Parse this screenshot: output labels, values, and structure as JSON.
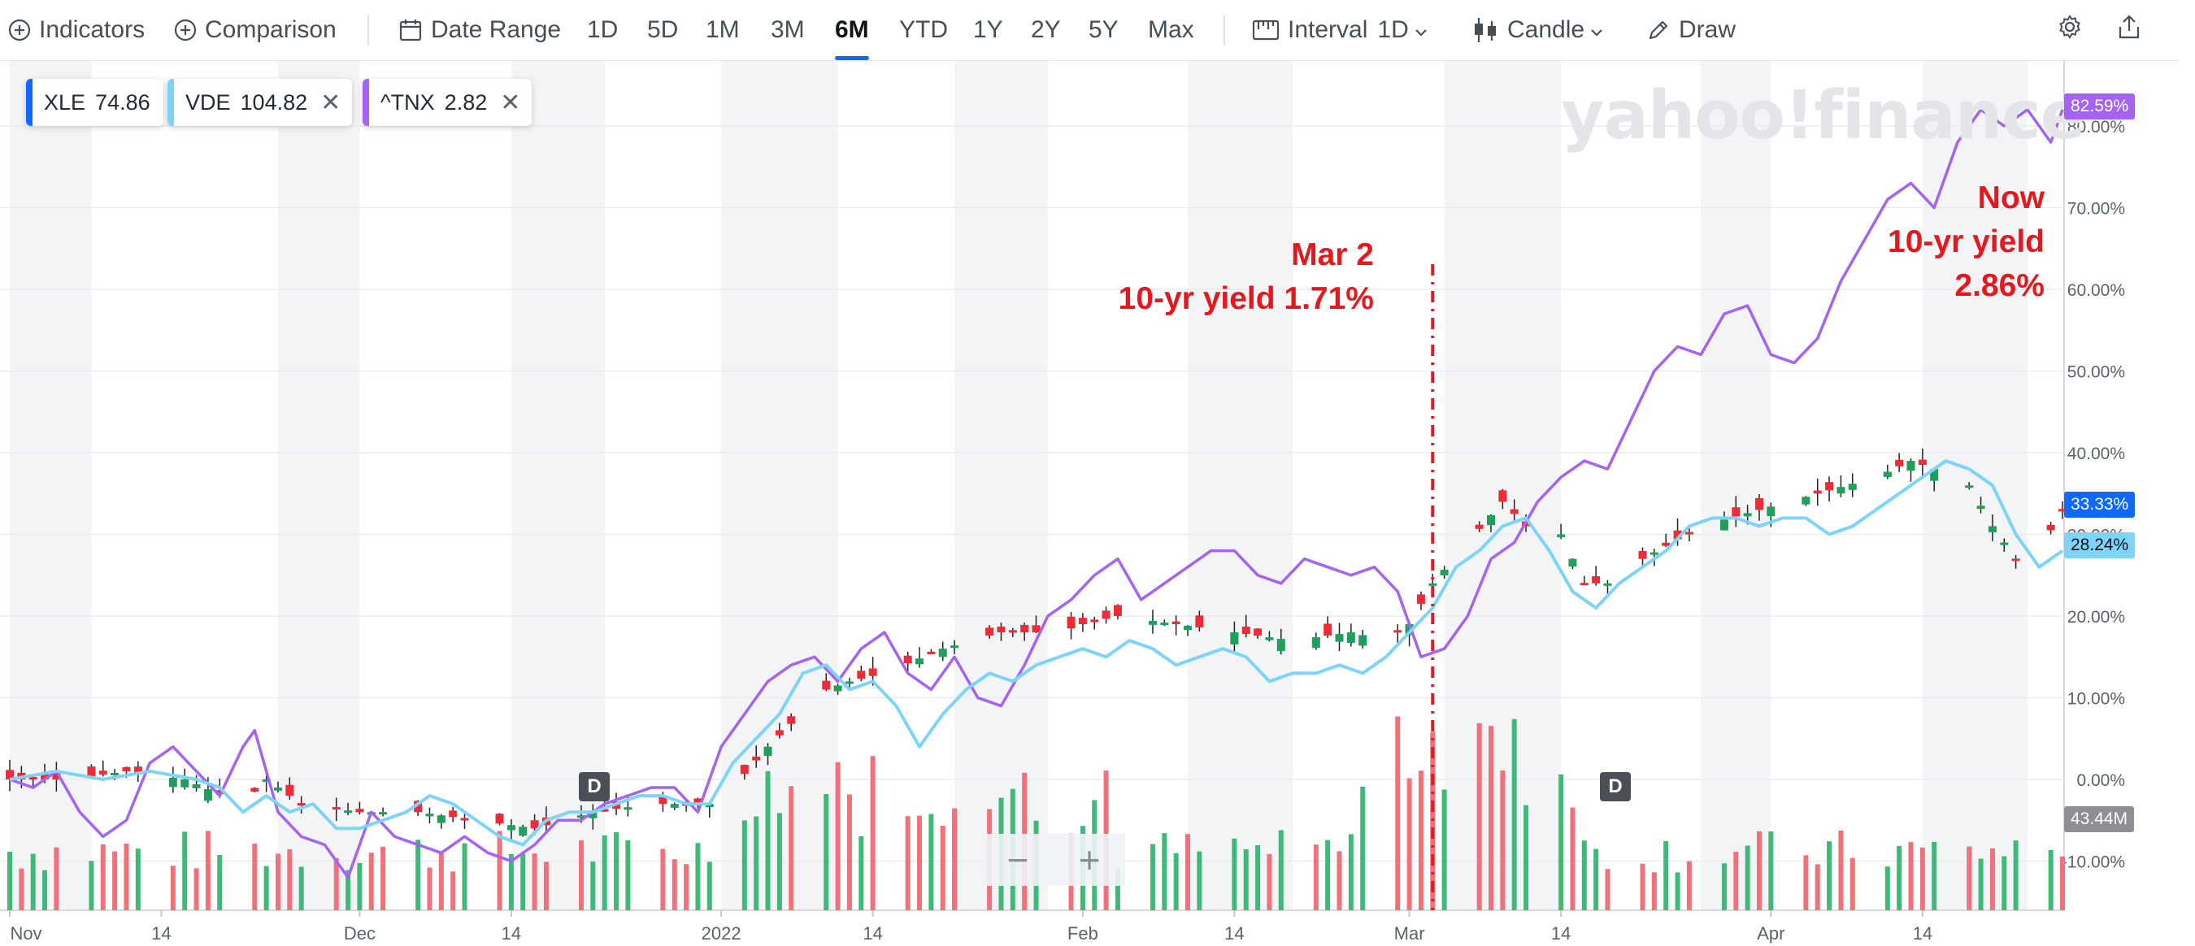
{
  "toolbar": {
    "indicators": "Indicators",
    "comparison": "Comparison",
    "date_range": "Date Range",
    "ranges": [
      "1D",
      "5D",
      "1M",
      "3M",
      "6M",
      "YTD",
      "1Y",
      "2Y",
      "5Y",
      "Max"
    ],
    "active_range": "6M",
    "interval_label": "Interval",
    "interval_value": "1D",
    "chart_type": "Candle",
    "draw": "Draw"
  },
  "legend": [
    {
      "symbol": "XLE",
      "value": "74.86",
      "color": "#0f69ff",
      "removable": false
    },
    {
      "symbol": "VDE",
      "value": "104.82",
      "color": "#7dd4f8",
      "removable": true
    },
    {
      "symbol": "^TNX",
      "value": "2.82",
      "color": "#a463f2",
      "removable": true
    }
  ],
  "watermark": "yahoo!finance",
  "price_tags": {
    "tnx": {
      "text": "82.59%",
      "color": "#a463f2"
    },
    "xle": {
      "text": "33.33%",
      "color": "#0f69ff"
    },
    "vde": {
      "text": "28.24%",
      "color": "#7dd4f8"
    },
    "volume": {
      "text": "43.44M",
      "color": "#8c9095"
    }
  },
  "annotations": {
    "mar2_line1": "Mar 2",
    "mar2_line2": "10-yr yield 1.71%",
    "now_line1": "Now",
    "now_line2": "10-yr yield",
    "now_line3": "2.86%"
  },
  "d_marker": "D",
  "zoom": {
    "minus": "−",
    "plus": "+"
  },
  "chart_data": {
    "type": "line",
    "ylabel": "",
    "yticks": [
      "80.00%",
      "70.00%",
      "60.00%",
      "50.00%",
      "40.00%",
      "30.00%",
      "20.00%",
      "10.00%",
      "0.00%",
      "-10.00%"
    ],
    "ylim": [
      -15,
      87
    ],
    "xticks": [
      "Nov",
      "14",
      "Dec",
      "14",
      "2022",
      "14",
      "Feb",
      "14",
      "Mar",
      "14",
      "Apr",
      "14"
    ],
    "x_tick_days": [
      0,
      13,
      30,
      43,
      61,
      74,
      92,
      105,
      120,
      133,
      151,
      164
    ],
    "x_range_days": [
      0,
      176
    ],
    "annotation_day": 122,
    "series": [
      {
        "name": "^TNX",
        "color": "#a463f2",
        "x": [
          0,
          2,
          4,
          6,
          8,
          10,
          12,
          14,
          16,
          18,
          20,
          21,
          23,
          25,
          27,
          29,
          31,
          33,
          35,
          37,
          39,
          41,
          43,
          45,
          47,
          49,
          51,
          53,
          55,
          57,
          59,
          61,
          63,
          65,
          67,
          69,
          71,
          73,
          75,
          77,
          79,
          81,
          83,
          85,
          87,
          89,
          91,
          93,
          95,
          97,
          99,
          101,
          103,
          105,
          107,
          109,
          111,
          113,
          115,
          117,
          119,
          121,
          123,
          125,
          127,
          129,
          131,
          133,
          135,
          137,
          139,
          141,
          143,
          145,
          147,
          149,
          151,
          153,
          155,
          157,
          159,
          161,
          163,
          165,
          167,
          169,
          171,
          173,
          175,
          176
        ],
        "y": [
          0,
          -1,
          1,
          -4,
          -7,
          -5,
          2,
          4,
          1,
          -2,
          4,
          6,
          -4,
          -7,
          -8,
          -12,
          -4,
          -7,
          -8,
          -9,
          -7,
          -9,
          -10,
          -8,
          -5,
          -5,
          -3,
          -2,
          -1,
          -1,
          -4,
          4,
          8,
          12,
          14,
          15,
          12,
          16,
          18,
          13,
          11,
          15,
          10,
          9,
          14,
          20,
          22,
          25,
          27,
          22,
          24,
          26,
          28,
          28,
          25,
          24,
          27,
          26,
          25,
          26,
          23,
          15,
          16,
          20,
          27,
          29,
          34,
          37,
          39,
          38,
          44,
          50,
          53,
          52,
          57,
          58,
          52,
          51,
          54,
          61,
          66,
          71,
          73,
          70,
          78,
          82,
          80,
          82,
          78,
          82
        ],
        "y_note": "percent change vs start, read from right axis"
      },
      {
        "name": "XLE",
        "color": "#0f69ff",
        "x": [
          0,
          5,
          10,
          15,
          20,
          22,
          25,
          30,
          35,
          40,
          45,
          50,
          55,
          60,
          62,
          65,
          70,
          72,
          75,
          80,
          85,
          90,
          92,
          95,
          100,
          105,
          110,
          115,
          118,
          120,
          122,
          125,
          128,
          130,
          133,
          135,
          138,
          140,
          145,
          150,
          155,
          160,
          163,
          165,
          168,
          170,
          172,
          174,
          176
        ],
        "y": [
          0,
          0,
          1,
          0,
          -3,
          0,
          -3,
          -4,
          -4,
          -5,
          -6,
          -4,
          -3,
          -3,
          -1,
          4,
          11,
          12,
          13,
          16,
          18,
          18,
          19,
          20,
          19,
          18,
          17,
          18,
          17,
          19,
          24,
          29,
          34,
          31,
          30,
          24,
          24,
          27,
          31,
          33,
          35,
          37,
          39,
          38,
          36,
          31,
          27,
          28,
          33
        ]
      },
      {
        "name": "VDE",
        "color": "#7dd4f8",
        "x": [
          0,
          4,
          8,
          12,
          16,
          18,
          20,
          22,
          24,
          26,
          28,
          30,
          32,
          34,
          36,
          38,
          40,
          42,
          44,
          46,
          48,
          50,
          52,
          54,
          56,
          58,
          60,
          62,
          64,
          66,
          68,
          70,
          72,
          74,
          76,
          78,
          80,
          82,
          84,
          86,
          88,
          90,
          92,
          94,
          96,
          98,
          100,
          102,
          104,
          106,
          108,
          110,
          112,
          114,
          116,
          118,
          120,
          122,
          124,
          126,
          128,
          130,
          132,
          134,
          136,
          138,
          140,
          142,
          144,
          146,
          148,
          150,
          152,
          154,
          156,
          158,
          160,
          162,
          164,
          166,
          168,
          170,
          172,
          174,
          176
        ],
        "y": [
          0,
          1,
          0,
          1,
          0,
          -1,
          -4,
          -2,
          -4,
          -3,
          -6,
          -6,
          -5,
          -4,
          -2,
          -3,
          -5,
          -7,
          -8,
          -5,
          -4,
          -4,
          -3,
          -2,
          -2,
          -3,
          -3,
          2,
          5,
          8,
          13,
          14,
          11,
          12,
          9,
          4,
          8,
          11,
          13,
          12,
          14,
          15,
          16,
          15,
          17,
          16,
          14,
          15,
          16,
          15,
          12,
          13,
          13,
          14,
          13,
          15,
          18,
          21,
          26,
          28,
          31,
          32,
          28,
          23,
          21,
          24,
          26,
          28,
          31,
          32,
          32,
          31,
          32,
          32,
          30,
          31,
          33,
          35,
          37,
          39,
          38,
          36,
          30,
          26,
          28
        ]
      },
      {
        "name": "Volume",
        "type": "bar",
        "unit": "M",
        "note": "red=down day, green=up day"
      }
    ]
  }
}
